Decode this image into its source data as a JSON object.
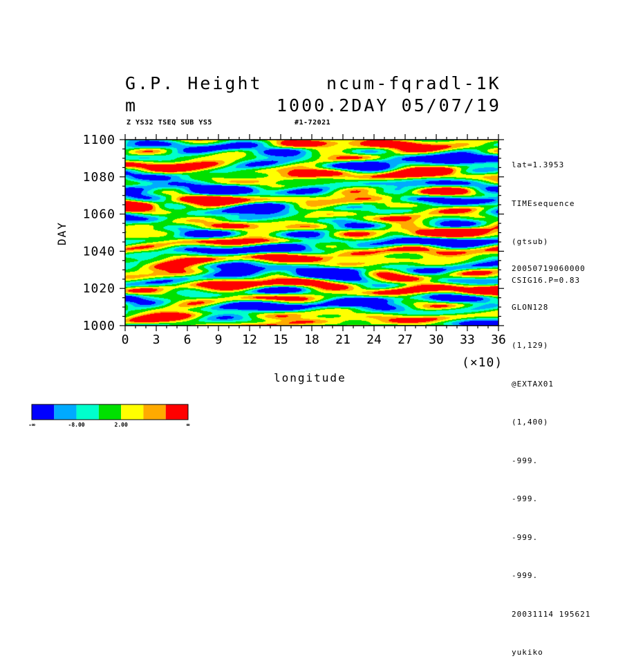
{
  "header": {
    "title_left": "G.P. Height",
    "title_right": "ncum-fqradl-1K",
    "unit": "m",
    "run_info": "1000.2DAY 05/07/19",
    "subtitle_left": "Z YS32 TSEQ SUB YS5",
    "subtitle_right": "#1-72021"
  },
  "side_info": {
    "top_lines": [
      "lat=1.3953",
      "TIMEsequence",
      "(gtsub)",
      "CSIG16.P=0.83"
    ],
    "bottom_lines": [
      "20050719060000",
      "GLON128",
      "(1,129)",
      "@EXTAX01",
      "(1,400)",
      "-999.",
      "-999.",
      "-999.",
      "-999.",
      "20031114 195621",
      "yukiko"
    ]
  },
  "chart_data": {
    "type": "heatmap",
    "xlabel": "longitude",
    "ylabel": "DAY",
    "x_multiplier_label": "(×10)",
    "xlim": [
      0,
      36
    ],
    "ylim": [
      1000,
      1100
    ],
    "x_ticks": [
      "0",
      "3",
      "6",
      "9",
      "12",
      "15",
      "18",
      "21",
      "24",
      "27",
      "30",
      "33",
      "36"
    ],
    "y_ticks": [
      "1000",
      "1020",
      "1040",
      "1060",
      "1080",
      "1100"
    ],
    "colorbar": {
      "colors": [
        "#0000ff",
        "#00aaff",
        "#00ffcc",
        "#00e000",
        "#ffff00",
        "#ffaa00",
        "#ff0000"
      ],
      "labels": [
        "-∞",
        "-8.00",
        "2.00",
        "∞"
      ]
    }
  }
}
